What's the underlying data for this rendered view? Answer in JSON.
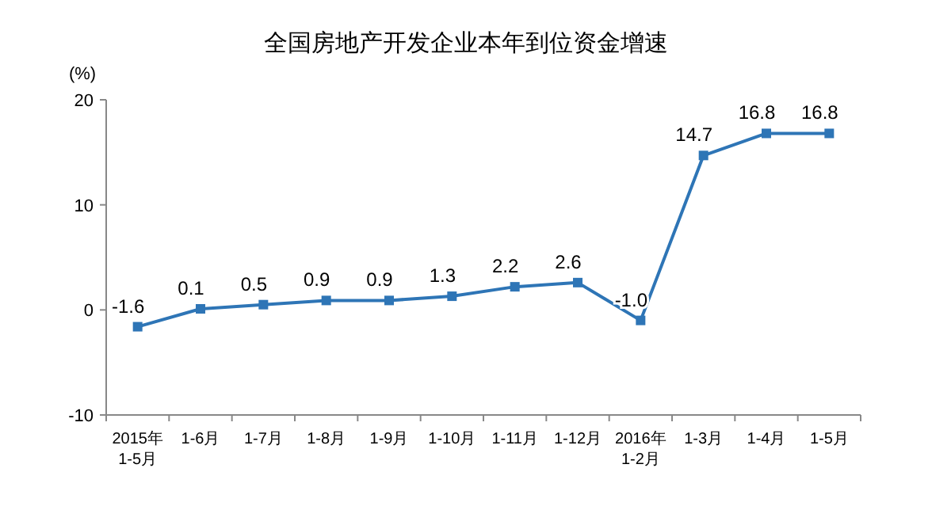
{
  "chart_data": {
    "type": "line",
    "title": "全国房地产开发企业本年到位资金增速",
    "ylabel": "(%)",
    "categories": [
      "2015年\n1-5月",
      "1-6月",
      "1-7月",
      "1-8月",
      "1-9月",
      "1-10月",
      "1-11月",
      "1-12月",
      "2016年\n1-2月",
      "1-3月",
      "1-4月",
      "1-5月"
    ],
    "series": [
      {
        "color": "#2e75b6",
        "values": [
          -1.6,
          0.1,
          0.5,
          0.9,
          0.9,
          1.3,
          2.2,
          2.6,
          -1.0,
          14.7,
          16.8,
          16.8
        ],
        "value_labels": [
          "-1.6",
          "0.1",
          "0.5",
          "0.9",
          "0.9",
          "1.3",
          "2.2",
          "2.6",
          "-1.0",
          "14.7",
          "16.8",
          "16.8"
        ]
      }
    ],
    "ylim": [
      -10,
      20
    ],
    "yticks": [
      -10,
      0,
      10,
      20
    ],
    "marker": "square",
    "line_style": "solid",
    "grid": false
  }
}
